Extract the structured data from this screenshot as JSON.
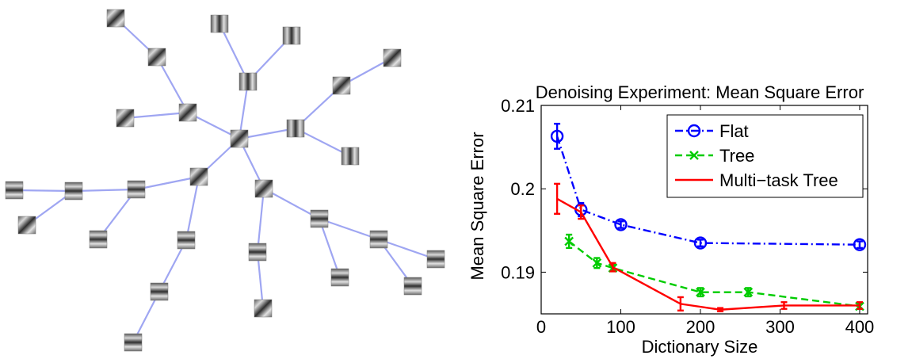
{
  "chart_data": {
    "type": "line",
    "title": "Denoising Experiment: Mean Square Error",
    "xlabel": "Dictionary Size",
    "ylabel": "Mean Square Error",
    "xlim": [
      0,
      410
    ],
    "ylim": [
      0.185,
      0.21
    ],
    "xticks": [
      0,
      100,
      200,
      300,
      400
    ],
    "xtick_labels": [
      "0",
      "100",
      "200",
      "300",
      "400"
    ],
    "yticks": [
      0.19,
      0.2,
      0.21
    ],
    "ytick_labels": [
      "0.19",
      "0.2",
      "0.21"
    ],
    "grid": false,
    "legend_position": "top-right",
    "series": [
      {
        "name": "Flat",
        "color": "#0000ff",
        "line_style": "dash-dot",
        "marker": "circle",
        "x": [
          20,
          50,
          100,
          200,
          400
        ],
        "y": [
          0.2063,
          0.1975,
          0.1957,
          0.1935,
          0.1933
        ],
        "err": [
          0.0015,
          0.0008,
          0.0004,
          0.0004,
          0.0004
        ]
      },
      {
        "name": "Tree",
        "color": "#00cc00",
        "line_style": "dashed",
        "marker": "x",
        "x": [
          35,
          70,
          90,
          200,
          260,
          400
        ],
        "y": [
          0.1937,
          0.1911,
          0.1905,
          0.1876,
          0.1876,
          0.1859
        ],
        "err": [
          0.0008,
          0.0006,
          0.0004,
          0.0005,
          0.0005,
          0.0003
        ]
      },
      {
        "name": "Multi−task Tree",
        "color": "#ff0000",
        "line_style": "solid",
        "marker": "none",
        "x": [
          20,
          50,
          90,
          175,
          225,
          305,
          400
        ],
        "y": [
          0.1988,
          0.1972,
          0.1906,
          0.1862,
          0.1855,
          0.186,
          0.186
        ],
        "err": [
          0.0018,
          0.0008,
          0.0005,
          0.0008,
          0.0002,
          0.0004,
          0.0004
        ]
      }
    ]
  },
  "tree_figure": {
    "edge_color": "#9fa6f2"
  }
}
